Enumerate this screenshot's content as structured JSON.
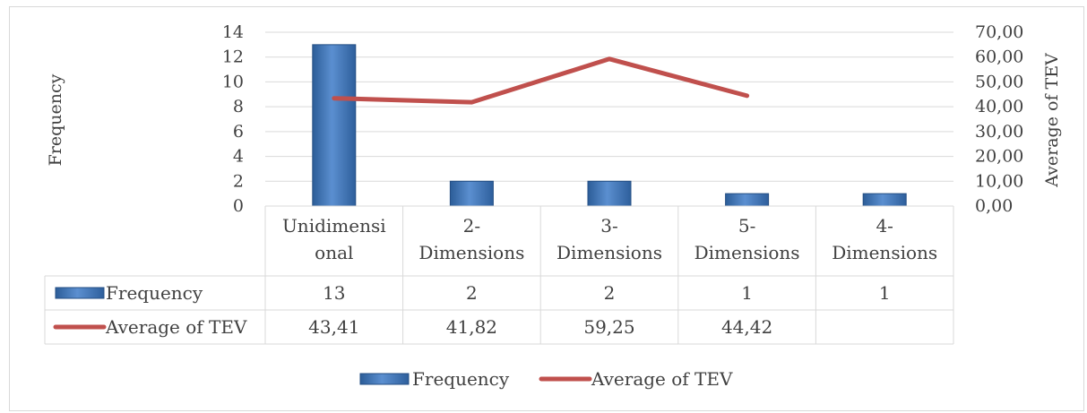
{
  "chart_data": {
    "type": "bar",
    "categories": [
      [
        "Unidimensi",
        "onal"
      ],
      [
        "2-",
        "Dimensions"
      ],
      [
        "3-",
        "Dimensions"
      ],
      [
        "5-",
        "Dimensions"
      ],
      [
        "4-",
        "Dimensions"
      ]
    ],
    "series": [
      {
        "name": "Frequency",
        "type": "bar",
        "axis": "left",
        "values": [
          13,
          2,
          2,
          1,
          1
        ],
        "table_values": [
          "13",
          "2",
          "2",
          "1",
          "1"
        ],
        "color": "#4a7ebb"
      },
      {
        "name": "Average of TEV",
        "type": "line",
        "axis": "right",
        "values": [
          43.41,
          41.82,
          59.25,
          44.42,
          null
        ],
        "table_values": [
          "43,41",
          "41,82",
          "59,25",
          "44,42",
          ""
        ],
        "color": "#c0504d"
      }
    ],
    "ylabel": "Frequency",
    "y2label": "Average of TEV",
    "ylim": [
      0,
      14
    ],
    "y2lim": [
      0,
      70
    ],
    "yticks": [
      "0",
      "2",
      "4",
      "6",
      "8",
      "10",
      "12",
      "14"
    ],
    "y2ticks": [
      "0,00",
      "10,00",
      "20,00",
      "30,00",
      "40,00",
      "50,00",
      "60,00",
      "70,00"
    ],
    "grid": true,
    "data_table": true,
    "legend_position": "bottom"
  }
}
